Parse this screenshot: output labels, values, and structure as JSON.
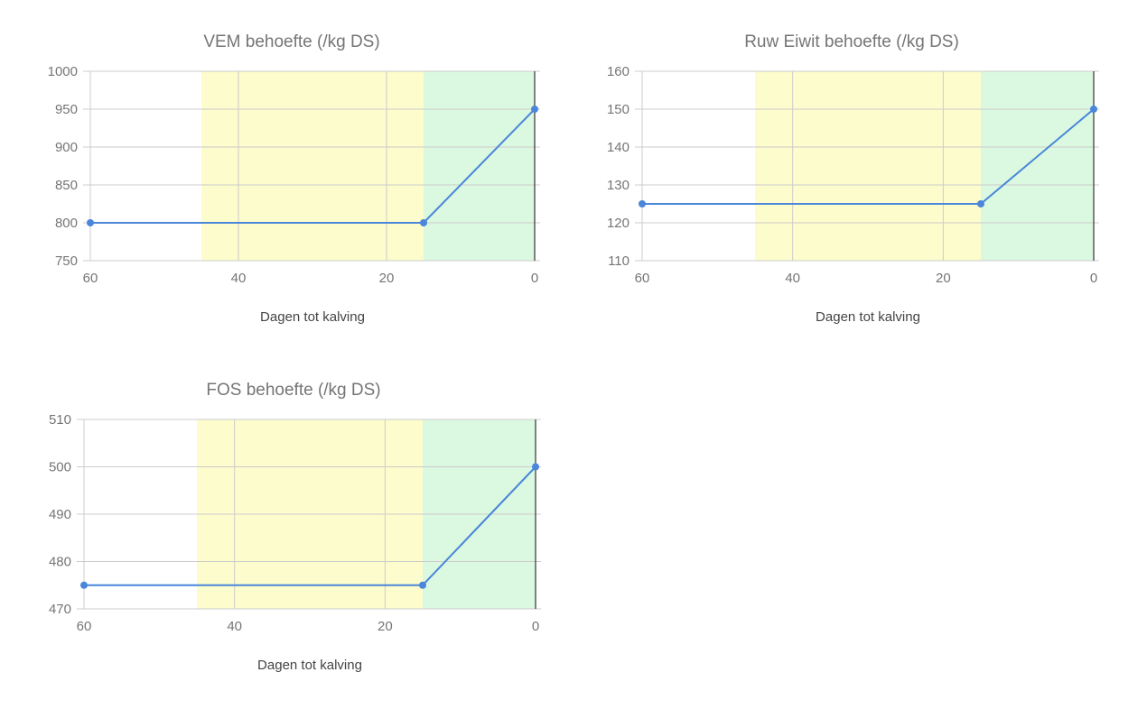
{
  "chart_data": [
    {
      "type": "line",
      "title": "VEM behoefte (/kg DS)",
      "xlabel": "Dagen tot kalving",
      "ylabel": "",
      "x_reversed": true,
      "xlim": [
        0,
        60
      ],
      "ylim": [
        750,
        1000
      ],
      "x_ticks": [
        60,
        40,
        20,
        0
      ],
      "y_ticks": [
        750,
        800,
        850,
        900,
        950,
        1000
      ],
      "grid": true,
      "bands": [
        {
          "from": 45,
          "to": 15,
          "color": "#fdfccc"
        },
        {
          "from": 15,
          "to": 0,
          "color": "#dbf8e1"
        }
      ],
      "series": [
        {
          "color": "#4a86d9",
          "x": [
            60,
            15,
            0
          ],
          "y": [
            800,
            800,
            950
          ]
        }
      ]
    },
    {
      "type": "line",
      "title": "Ruw Eiwit behoefte (/kg DS)",
      "xlabel": "Dagen tot kalving",
      "ylabel": "",
      "x_reversed": true,
      "xlim": [
        0,
        60
      ],
      "ylim": [
        110,
        160
      ],
      "x_ticks": [
        60,
        40,
        20,
        0
      ],
      "y_ticks": [
        110,
        120,
        130,
        140,
        150,
        160
      ],
      "grid": true,
      "bands": [
        {
          "from": 45,
          "to": 15,
          "color": "#fdfccc"
        },
        {
          "from": 15,
          "to": 0,
          "color": "#dbf8e1"
        }
      ],
      "series": [
        {
          "color": "#4a86d9",
          "x": [
            60,
            15,
            0
          ],
          "y": [
            125,
            125,
            150
          ]
        }
      ]
    },
    {
      "type": "line",
      "title": "FOS behoefte (/kg DS)",
      "xlabel": "Dagen tot kalving",
      "ylabel": "",
      "x_reversed": true,
      "xlim": [
        0,
        60
      ],
      "ylim": [
        470,
        510
      ],
      "x_ticks": [
        60,
        40,
        20,
        0
      ],
      "y_ticks": [
        470,
        480,
        490,
        500,
        510
      ],
      "grid": true,
      "bands": [
        {
          "from": 45,
          "to": 15,
          "color": "#fdfccc"
        },
        {
          "from": 15,
          "to": 0,
          "color": "#dbf8e1"
        }
      ],
      "series": [
        {
          "color": "#4a86d9",
          "x": [
            60,
            15,
            0
          ],
          "y": [
            475,
            475,
            500
          ]
        }
      ]
    }
  ]
}
